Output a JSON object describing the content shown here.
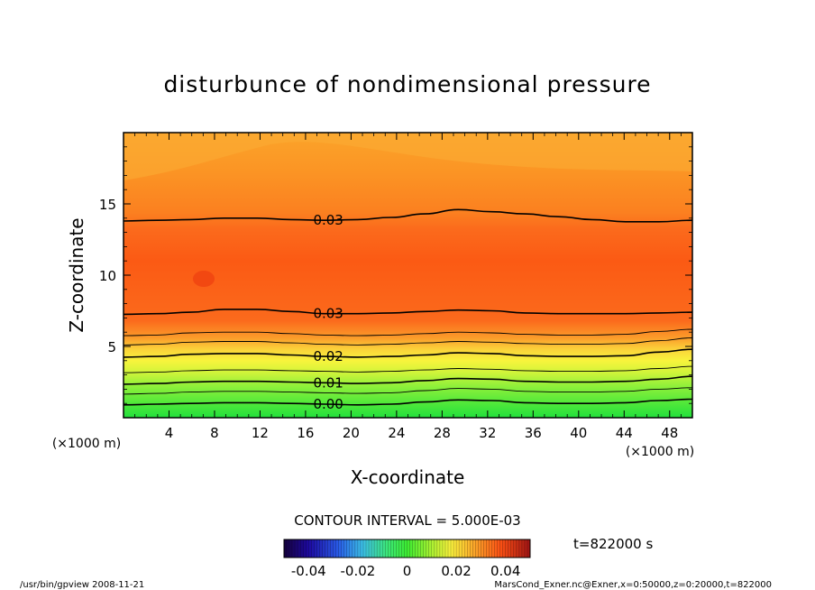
{
  "chart_data": {
    "type": "contour",
    "title": "disturbunce of nondimensional pressure",
    "xlabel": "X-coordinate",
    "ylabel": "Z-coordinate",
    "x_unit": "(×1000 m)",
    "y_unit": "(×1000 m)",
    "xlim": [
      0,
      50
    ],
    "ylim": [
      0,
      20
    ],
    "x_ticks": [
      4,
      8,
      12,
      16,
      20,
      24,
      28,
      32,
      36,
      40,
      44,
      48
    ],
    "y_ticks": [
      5,
      10,
      15
    ],
    "contours": [
      {
        "label": "0.00",
        "level": 0.0,
        "z": [
          0.9,
          0.95,
          1.0,
          1.05,
          1.05,
          1.0,
          0.95,
          0.9,
          0.95,
          1.1,
          1.25,
          1.2,
          1.05,
          1.0,
          1.0,
          1.05,
          1.2,
          1.3
        ]
      },
      {
        "label": "",
        "level": 0.005,
        "z": [
          1.65,
          1.7,
          1.8,
          1.85,
          1.85,
          1.8,
          1.75,
          1.7,
          1.75,
          1.9,
          2.05,
          2.0,
          1.85,
          1.8,
          1.8,
          1.85,
          2.0,
          2.1
        ]
      },
      {
        "label": "0.01",
        "level": 0.01,
        "z": [
          2.35,
          2.4,
          2.5,
          2.55,
          2.55,
          2.5,
          2.45,
          2.4,
          2.45,
          2.6,
          2.75,
          2.7,
          2.55,
          2.5,
          2.5,
          2.55,
          2.7,
          2.9
        ]
      },
      {
        "label": "",
        "level": 0.015,
        "z": [
          3.15,
          3.2,
          3.3,
          3.35,
          3.35,
          3.3,
          3.25,
          3.2,
          3.25,
          3.35,
          3.45,
          3.4,
          3.3,
          3.25,
          3.25,
          3.3,
          3.45,
          3.6
        ]
      },
      {
        "label": "0.02",
        "level": 0.02,
        "z": [
          4.25,
          4.3,
          4.45,
          4.5,
          4.5,
          4.4,
          4.3,
          4.25,
          4.3,
          4.4,
          4.55,
          4.5,
          4.35,
          4.3,
          4.3,
          4.35,
          4.6,
          4.8
        ]
      },
      {
        "label": "",
        "level": 0.025,
        "z": [
          5.1,
          5.15,
          5.3,
          5.35,
          5.35,
          5.25,
          5.15,
          5.1,
          5.15,
          5.25,
          5.35,
          5.3,
          5.2,
          5.15,
          5.15,
          5.2,
          5.4,
          5.6
        ]
      },
      {
        "label": "",
        "level": 0.0275,
        "z": [
          5.75,
          5.8,
          5.95,
          6.0,
          6.0,
          5.9,
          5.8,
          5.75,
          5.8,
          5.9,
          6.0,
          5.95,
          5.85,
          5.8,
          5.8,
          5.85,
          6.05,
          6.2
        ]
      },
      {
        "label": "0.03",
        "level": 0.03,
        "z": [
          7.25,
          7.3,
          7.4,
          7.6,
          7.6,
          7.45,
          7.3,
          7.3,
          7.35,
          7.45,
          7.55,
          7.5,
          7.35,
          7.3,
          7.3,
          7.3,
          7.35,
          7.4
        ]
      },
      {
        "label": "0.03",
        "level": 0.03,
        "z": [
          13.8,
          13.85,
          13.9,
          14.0,
          14.0,
          13.9,
          13.85,
          13.9,
          14.05,
          14.3,
          14.6,
          14.45,
          14.3,
          14.1,
          13.9,
          13.75,
          13.75,
          13.85
        ]
      }
    ],
    "contour_interval": "CONTOUR INTERVAL = 5.000E-03",
    "colorbar": {
      "tick_labels": [
        "-0.04",
        "-0.02",
        "0",
        "0.02",
        "0.04"
      ],
      "tick_values": [
        -0.04,
        -0.02,
        0,
        0.02,
        0.04
      ],
      "range": [
        -0.05,
        0.05
      ]
    },
    "time_label": "t=822000 s",
    "footer_left": "/usr/bin/gpview   2008-11-21",
    "footer_right": "MarsCond_Exner.nc@Exner,x=0:50000,z=0:20000,t=822000"
  }
}
